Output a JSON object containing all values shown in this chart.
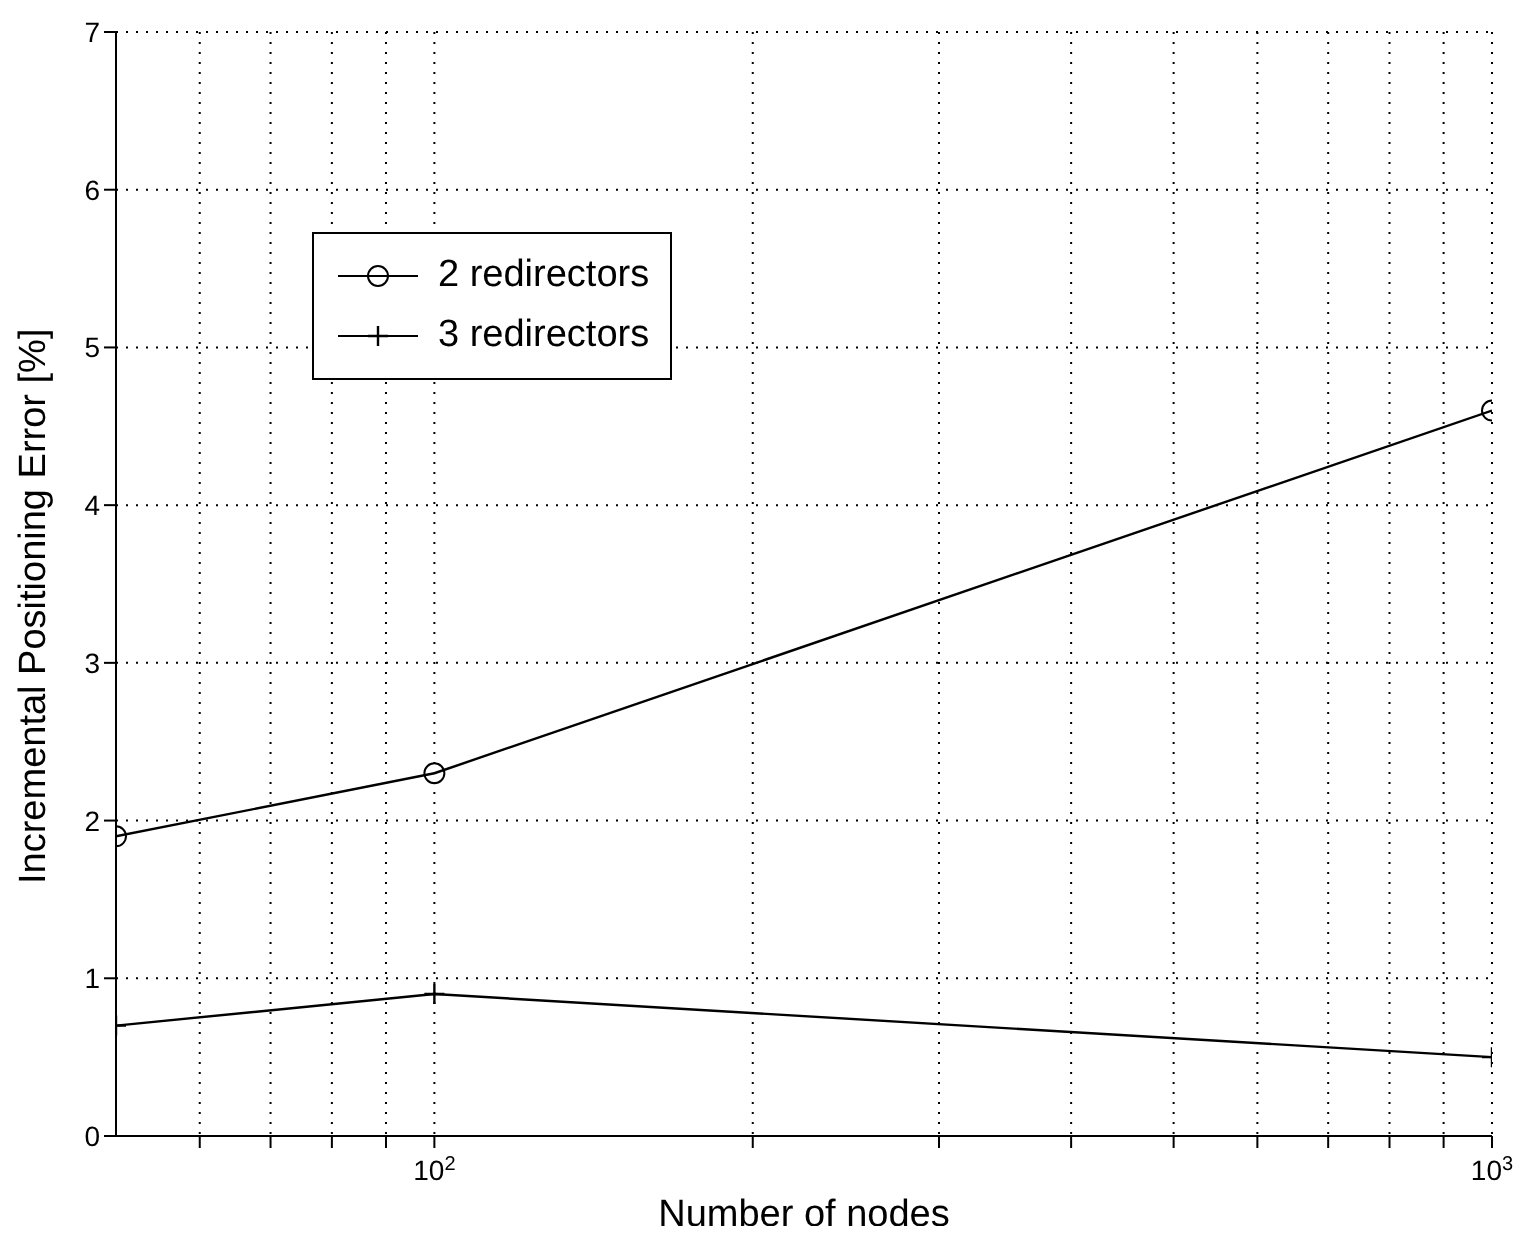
{
  "chart_data": {
    "type": "line",
    "xlabel": "Number of nodes",
    "ylabel": "Incremental Positioning Error [%]",
    "x": [
      50,
      100,
      1000
    ],
    "series": [
      {
        "name": "2 redirectors",
        "color": "#000000",
        "marker": "circle",
        "values": [
          1.9,
          2.3,
          4.6
        ]
      },
      {
        "name": "3 redirectors",
        "color": "#000000",
        "marker": "cross",
        "values": [
          0.7,
          0.9,
          0.5
        ]
      }
    ],
    "log": "x",
    "xlim": [
      50,
      1000
    ],
    "xticks": [
      {
        "value": 60,
        "label": null
      },
      {
        "value": 70,
        "label": null
      },
      {
        "value": 80,
        "label": null
      },
      {
        "value": 90,
        "label": null
      },
      {
        "value": 100,
        "label": "10$^{2}$"
      },
      {
        "value": 200,
        "label": null
      },
      {
        "value": 300,
        "label": null
      },
      {
        "value": 400,
        "label": null
      },
      {
        "value": 500,
        "label": null
      },
      {
        "value": 600,
        "label": null
      },
      {
        "value": 700,
        "label": null
      },
      {
        "value": 800,
        "label": null
      },
      {
        "value": 900,
        "label": null
      },
      {
        "value": 1000,
        "label": "10$^{3}$"
      }
    ],
    "ylim": [
      0,
      7
    ],
    "yticks": [
      0,
      1,
      2,
      3,
      4,
      5,
      6,
      7
    ],
    "grid": true,
    "legend": "top left",
    "line_style": "solid"
  }
}
